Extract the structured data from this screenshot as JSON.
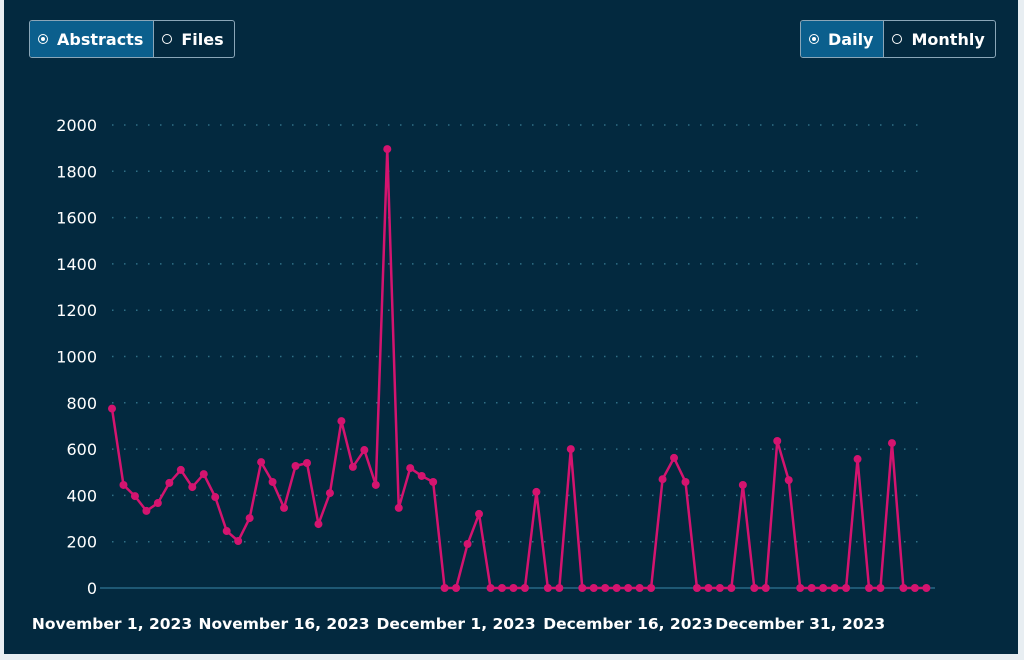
{
  "data_toggle": {
    "options": [
      {
        "label": "Abstracts",
        "selected": true
      },
      {
        "label": "Files",
        "selected": false
      }
    ]
  },
  "period_toggle": {
    "options": [
      {
        "label": "Daily",
        "selected": true
      },
      {
        "label": "Monthly",
        "selected": false
      }
    ]
  },
  "colors": {
    "background": "#03293f",
    "line": "#d4146f",
    "grid": "#2f6f86",
    "axis": "#3a86a8"
  },
  "chart_data": {
    "type": "line",
    "title": "",
    "xlabel": "",
    "ylabel": "",
    "ylim": [
      0,
      2000
    ],
    "yticks": [
      "0",
      "200",
      "400",
      "600",
      "800",
      "1000",
      "1200",
      "1400",
      "1600",
      "1800",
      "2000"
    ],
    "ytick_values": [
      0,
      200,
      400,
      600,
      800,
      1000,
      1200,
      1400,
      1600,
      1800,
      2000
    ],
    "x_start": "2023-11-01",
    "xtick_labels": [
      {
        "label": "November 1, 2023",
        "index": 0
      },
      {
        "label": "November 16, 2023",
        "index": 15
      },
      {
        "label": "December 1, 2023",
        "index": 30
      },
      {
        "label": "December 16, 2023",
        "index": 45
      },
      {
        "label": "December 31, 2023",
        "index": 60
      }
    ],
    "grid": true,
    "series": [
      {
        "name": "Abstracts",
        "values": [
          775,
          445,
          397,
          333,
          367,
          454,
          510,
          436,
          492,
          393,
          246,
          203,
          302,
          544,
          458,
          346,
          527,
          540,
          276,
          410,
          721,
          523,
          596,
          445,
          1896,
          346,
          518,
          484,
          458,
          0,
          0,
          190,
          320,
          0,
          0,
          0,
          0,
          415,
          0,
          0,
          600,
          0,
          0,
          0,
          0,
          0,
          0,
          0,
          470,
          562,
          458,
          0,
          0,
          0,
          0,
          445,
          0,
          0,
          635,
          466,
          0,
          0,
          0,
          0,
          0,
          557,
          0,
          0,
          626,
          0,
          0,
          0
        ]
      }
    ]
  }
}
